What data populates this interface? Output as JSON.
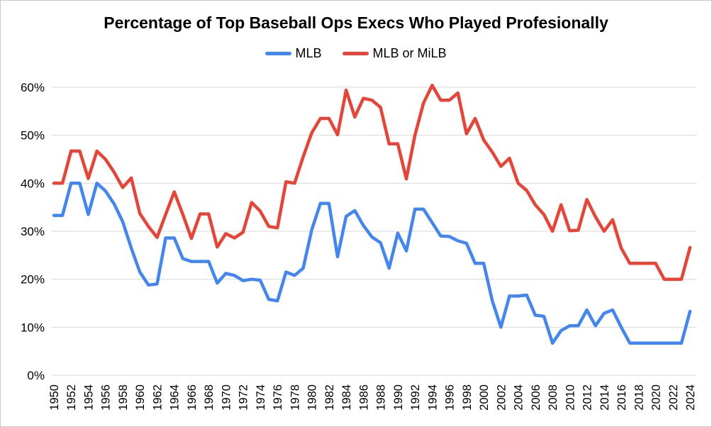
{
  "chart": {
    "title": "Percentage of Top Baseball Ops Execs Who Played Profesionally",
    "background": "#ffffff",
    "gridline_color": "#d9d9d9",
    "text_color": "#000000"
  },
  "chart_data": {
    "type": "line",
    "title": "Percentage of Top Baseball Ops Execs Who Played Profesionally",
    "legend_position": "top",
    "grid": "horizontal-only",
    "ylim": [
      0,
      60
    ],
    "y_tick_labels": [
      "0%",
      "10%",
      "20%",
      "30%",
      "40%",
      "50%",
      "60%"
    ],
    "y_tick_values": [
      0,
      10,
      20,
      30,
      40,
      50,
      60
    ],
    "x_tick_labels": [
      "1950",
      "1952",
      "1954",
      "1956",
      "1958",
      "1960",
      "1962",
      "1964",
      "1966",
      "1968",
      "1970",
      "1972",
      "1974",
      "1976",
      "1978",
      "1980",
      "1982",
      "1984",
      "1986",
      "1988",
      "1990",
      "1992",
      "1994",
      "1996",
      "1998",
      "2000",
      "2002",
      "2004",
      "2006",
      "2008",
      "2010",
      "2012",
      "2014",
      "2016",
      "2018",
      "2020",
      "2022",
      "2024"
    ],
    "x": [
      1950,
      1951,
      1952,
      1953,
      1954,
      1955,
      1956,
      1957,
      1958,
      1959,
      1960,
      1961,
      1962,
      1963,
      1964,
      1965,
      1966,
      1967,
      1968,
      1969,
      1970,
      1971,
      1972,
      1973,
      1974,
      1975,
      1976,
      1977,
      1978,
      1979,
      1980,
      1981,
      1982,
      1983,
      1984,
      1985,
      1986,
      1987,
      1988,
      1989,
      1990,
      1991,
      1992,
      1993,
      1994,
      1995,
      1996,
      1997,
      1998,
      1999,
      2000,
      2001,
      2002,
      2003,
      2004,
      2005,
      2006,
      2007,
      2008,
      2009,
      2010,
      2011,
      2012,
      2013,
      2014,
      2015,
      2016,
      2017,
      2018,
      2019,
      2020,
      2021,
      2022,
      2023,
      2024
    ],
    "series": [
      {
        "name": "MLB",
        "color": "#4285f4",
        "values": [
          33.3,
          33.3,
          40,
          40,
          33.5,
          40,
          38.4,
          35.7,
          32,
          26.5,
          21.5,
          18.8,
          19,
          28.6,
          28.6,
          24.3,
          23.7,
          23.7,
          23.7,
          19.2,
          21.2,
          20.8,
          19.7,
          20,
          19.8,
          15.8,
          15.5,
          21.5,
          20.8,
          22.3,
          30.3,
          35.8,
          35.8,
          24.7,
          33.1,
          34.3,
          31.2,
          28.8,
          27.6,
          22.3,
          29.6,
          25.9,
          34.6,
          34.6,
          31.8,
          29,
          28.9,
          28,
          27.5,
          23.3,
          23.3,
          15.5,
          10,
          16.5,
          16.5,
          16.7,
          12.5,
          12.3,
          6.7,
          9.3,
          10.3,
          10.3,
          13.6,
          10.3,
          12.9,
          13.6,
          10,
          6.7,
          6.7,
          6.7,
          6.7,
          6.7,
          6.7,
          6.7,
          13.3
        ]
      },
      {
        "name": "MLB or MiLB",
        "color": "#ea4335",
        "values": [
          40,
          40,
          46.7,
          46.7,
          41,
          46.7,
          45,
          42.3,
          39.1,
          41.1,
          33.7,
          31,
          28.7,
          33.5,
          38.2,
          33.5,
          28.5,
          33.6,
          33.6,
          26.7,
          29.5,
          28.6,
          29.8,
          36,
          34.2,
          31,
          30.7,
          40.3,
          40,
          45.5,
          50.5,
          53.5,
          53.5,
          50.1,
          59.4,
          53.8,
          57.7,
          57.3,
          55.8,
          48.2,
          48.2,
          40.9,
          50,
          56.7,
          60.4,
          57.3,
          57.3,
          58.8,
          50.3,
          53.5,
          49,
          46.5,
          43.5,
          45.2,
          40,
          38.5,
          35.5,
          33.5,
          30,
          35.5,
          30.1,
          30.2,
          36.6,
          33,
          30,
          32.4,
          26.5,
          23.3,
          23.3,
          23.3,
          23.3,
          20,
          20,
          20,
          26.6
        ]
      }
    ]
  }
}
